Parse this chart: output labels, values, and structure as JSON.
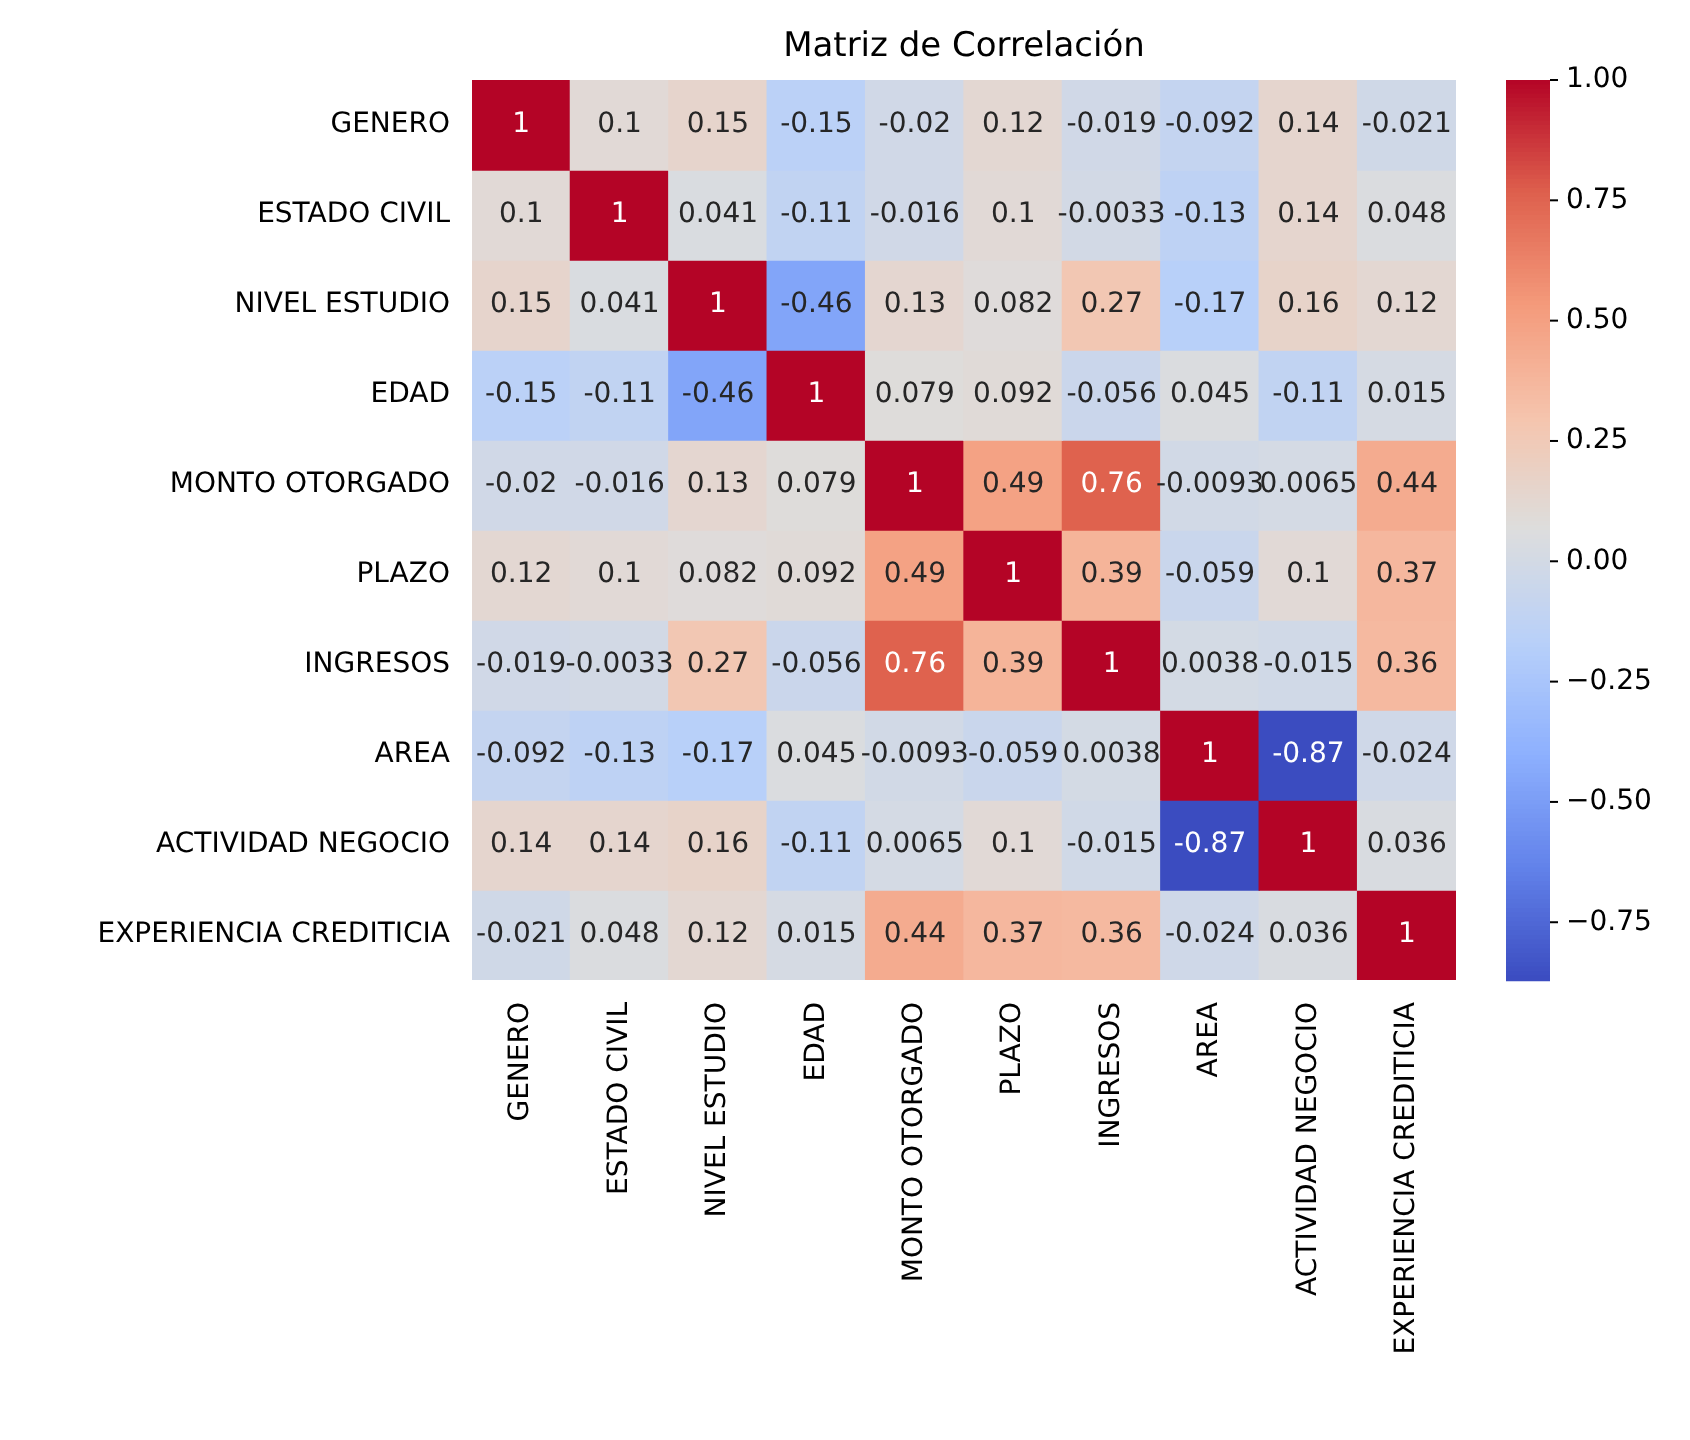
{
  "chart_data": {
    "type": "heatmap",
    "title": "Matriz de Correlación",
    "categories": [
      "GENERO",
      "ESTADO CIVIL",
      "NIVEL ESTUDIO",
      "EDAD",
      "MONTO OTORGADO",
      "PLAZO",
      "INGRESOS",
      "AREA",
      "ACTIVIDAD NEGOCIO",
      "EXPERIENCIA CREDITICIA"
    ],
    "y_categories": [
      "GENERO",
      "ESTADO CIVIL",
      "NIVEL ESTUDIO",
      "EDAD",
      "MONTO OTORGADO",
      "PLAZO",
      "INGRESOS",
      "AREA",
      "ACTIVIDAD NEGOCIO",
      "EXPERIENCIA CREDITICIA"
    ],
    "cells": [
      [
        1,
        0.1,
        0.15,
        -0.15,
        -0.02,
        0.12,
        -0.019,
        -0.092,
        0.14,
        -0.021
      ],
      [
        0.1,
        1,
        0.041,
        -0.11,
        -0.016,
        0.1,
        -0.0033,
        -0.13,
        0.14,
        0.048
      ],
      [
        0.15,
        0.041,
        1,
        -0.46,
        0.13,
        0.082,
        0.27,
        -0.17,
        0.16,
        0.12
      ],
      [
        -0.15,
        -0.11,
        -0.46,
        1,
        0.079,
        0.092,
        -0.056,
        0.045,
        -0.11,
        0.015
      ],
      [
        -0.02,
        -0.016,
        0.13,
        0.079,
        1,
        0.49,
        0.76,
        -0.0093,
        0.0065,
        0.44
      ],
      [
        0.12,
        0.1,
        0.082,
        0.092,
        0.49,
        1,
        0.39,
        -0.059,
        0.1,
        0.37
      ],
      [
        -0.019,
        -0.0033,
        0.27,
        -0.056,
        0.76,
        0.39,
        1,
        0.0038,
        -0.015,
        0.36
      ],
      [
        -0.092,
        -0.13,
        -0.17,
        0.045,
        -0.0093,
        -0.059,
        0.0038,
        1,
        -0.87,
        -0.024
      ],
      [
        0.14,
        0.14,
        0.16,
        -0.11,
        0.0065,
        0.1,
        -0.015,
        -0.87,
        1,
        0.036
      ],
      [
        -0.021,
        0.048,
        0.12,
        0.015,
        0.44,
        0.37,
        0.36,
        -0.024,
        0.036,
        1
      ]
    ],
    "data_labels": true,
    "clim": [
      -0.87,
      1
    ],
    "cticks": [
      {
        "value": -0.75,
        "label": "−0.75"
      },
      {
        "value": -0.5,
        "label": "−0.50"
      },
      {
        "value": -0.25,
        "label": "−0.25"
      },
      {
        "value": 0,
        "label": "0.00"
      },
      {
        "value": 0.25,
        "label": "0.25"
      },
      {
        "value": 0.5,
        "label": "0.50"
      },
      {
        "value": 0.75,
        "label": "0.75"
      },
      {
        "value": 1,
        "label": "1.00"
      }
    ]
  }
}
